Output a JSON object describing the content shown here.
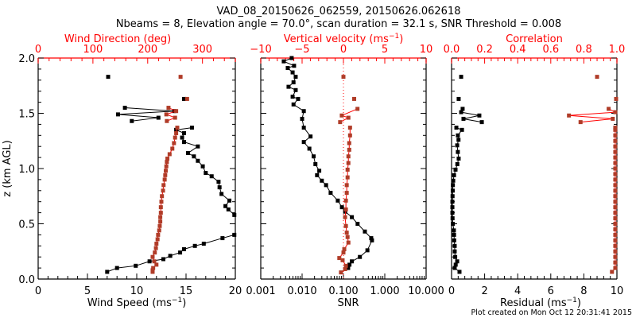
{
  "colors": {
    "primary": "#000000",
    "secondary_axis": "#ff0000",
    "secondary_marker": "#b03c28",
    "background": "#ffffff"
  },
  "chart_data": [
    {
      "type": "line",
      "panel": "left",
      "title_line1": "VAD_08_20150626_062559, 20150626.062618",
      "title_line2": "Nbeams = 8, Elevation angle = 70.0°, scan duration = 32.1 s, SNR Threshold = 0.008",
      "ylabel": "z (km AGL)",
      "ylim": [
        0,
        2.0
      ],
      "yticks": [
        "0.0",
        "0.5",
        "1.0",
        "1.5",
        "2.0"
      ],
      "xlabel": "Wind Speed (ms⁻¹)",
      "xlabel_main": "Wind Speed (ms",
      "xlabel_sup": "−1",
      "xlim": [
        0,
        20
      ],
      "xticks": [
        "0",
        "5",
        "10",
        "15",
        "20"
      ],
      "x2label": "Wind Direction (deg)",
      "x2lim": [
        0,
        360
      ],
      "x2ticks": [
        "0",
        "100",
        "200",
        "300"
      ],
      "series": [
        {
          "name": "Wind Speed",
          "color": "#000000",
          "axis": "bottom",
          "connected_groups": [
            {
              "z": [
                0.065,
                0.1,
                0.12,
                0.16,
                0.18,
                0.21,
                0.24,
                0.27,
                0.3,
                0.32,
                0.37,
                0.4
              ],
              "x": [
                7.0,
                8.0,
                9.9,
                11.3,
                12.7,
                13.4,
                14.4,
                14.8,
                15.9,
                16.8,
                18.7,
                19.9
              ]
            },
            {
              "z": [
                0.58,
                0.63,
                0.66,
                0.71,
                0.77,
                0.83,
                0.88,
                0.93,
                0.96,
                1.02,
                1.07,
                1.11,
                1.14,
                1.2,
                1.24,
                1.28,
                1.32,
                1.35,
                1.37
              ],
              "x": [
                19.9,
                19.3,
                19.0,
                19.4,
                18.6,
                18.4,
                18.3,
                17.6,
                17.0,
                16.7,
                16.2,
                15.8,
                15.2,
                16.2,
                14.8,
                14.6,
                14.8,
                14.0,
                15.6
              ]
            },
            {
              "z": [
                1.43,
                1.46,
                1.49,
                1.52,
                1.55
              ],
              "x": [
                9.5,
                12.2,
                8.1,
                13.8,
                8.8
              ]
            }
          ],
          "isolated": [
            {
              "z": 1.63,
              "x": 14.8
            },
            {
              "z": 1.83,
              "x": 7.1
            }
          ]
        },
        {
          "name": "Wind Direction",
          "color": "#b03c28",
          "axis": "top",
          "connected_groups": [
            {
              "z": [
                0.065,
                0.08,
                0.1,
                0.13,
                0.16,
                0.2,
                0.24,
                0.28,
                0.32,
                0.36,
                0.4,
                0.44,
                0.48,
                0.52,
                0.56,
                0.6,
                0.65,
                0.7,
                0.75,
                0.8,
                0.85,
                0.9,
                0.94,
                0.98,
                1.02,
                1.06,
                1.09,
                1.13,
                1.18,
                1.23,
                1.28,
                1.32,
                1.37
              ],
              "x": [
                209,
                209,
                210,
                216,
                212,
                209,
                213,
                215,
                216,
                218,
                219,
                221,
                222,
                223,
                223,
                224,
                224,
                225,
                226,
                228,
                229,
                231,
                232,
                233,
                234,
                235,
                236,
                240,
                245,
                248,
                250,
                252,
                254
              ]
            },
            {
              "z": [
                1.43,
                1.46,
                1.49,
                1.52,
                1.55
              ],
              "x": [
                235,
                250,
                234,
                252,
                238
              ]
            }
          ],
          "isolated": [
            {
              "z": 1.63,
              "x": 272
            },
            {
              "z": 1.83,
              "x": 260
            }
          ]
        }
      ]
    },
    {
      "type": "line",
      "panel": "middle",
      "xlabel": "SNR",
      "xscale": "log",
      "xlim": [
        0.001,
        10.0
      ],
      "xticks": [
        "0.001",
        "0.010",
        "0.100",
        "1.000",
        "10.000"
      ],
      "x2label": "Vertical velocity (ms⁻¹)",
      "x2label_main": "Vertical velocity (ms",
      "x2label_sup": "−1",
      "x2lim": [
        -10,
        10
      ],
      "x2ticks": [
        "−10",
        "−5",
        "0",
        "5",
        "10"
      ],
      "reference_line": {
        "axis": "top",
        "x": 0,
        "style": "dotted",
        "color": "#ff0000"
      },
      "series": [
        {
          "name": "SNR",
          "color": "#000000",
          "axis": "bottom",
          "connected_groups": [
            {
              "z": [
                2.0,
                1.97,
                1.93,
                1.91,
                1.87,
                1.83,
                1.78,
                1.74,
                1.71,
                1.65,
                1.63,
                1.58,
                1.52,
                1.45,
                1.37,
                1.29,
                1.24,
                1.18,
                1.11,
                1.04,
                0.98,
                0.94,
                0.89,
                0.85,
                0.78,
                0.71,
                0.65,
                0.61,
                0.56,
                0.5,
                0.43,
                0.37,
                0.35,
                0.26,
                0.2,
                0.16,
                0.13,
                0.1
              ],
              "x": [
                0.0056,
                0.0036,
                0.0064,
                0.0045,
                0.0059,
                0.007,
                0.0062,
                0.0047,
                0.007,
                0.0059,
                0.008,
                0.0062,
                0.011,
                0.01,
                0.011,
                0.016,
                0.011,
                0.015,
                0.019,
                0.021,
                0.026,
                0.023,
                0.03,
                0.038,
                0.049,
                0.073,
                0.092,
                0.11,
                0.16,
                0.22,
                0.33,
                0.47,
                0.49,
                0.38,
                0.25,
                0.16,
                0.14,
                0.13
              ]
            }
          ],
          "isolated": []
        },
        {
          "name": "Vertical velocity",
          "color": "#b03c28",
          "axis": "top",
          "connected_groups": [
            {
              "z": [
                1.54,
                1.48,
                1.46,
                1.42
              ],
              "x": [
                1.7,
                -0.2,
                0.6,
                -0.4
              ]
            },
            {
              "z": [
                0.06,
                0.09,
                0.12,
                0.17,
                0.19,
                0.24,
                0.27,
                0.33,
                0.38,
                0.42,
                0.48,
                0.56,
                0.63,
                0.71,
                0.78,
                0.85,
                0.92,
                0.99,
                1.05,
                1.11,
                1.17,
                1.23,
                1.3,
                1.37
              ],
              "x": [
                -0.3,
                0.2,
                0.3,
                -0.1,
                -0.5,
                0.0,
                0.1,
                0.6,
                0.5,
                0.4,
                0.3,
                0.2,
                0.3,
                0.3,
                0.4,
                0.4,
                0.5,
                0.5,
                0.6,
                0.6,
                0.7,
                0.7,
                0.8,
                0.8
              ]
            }
          ],
          "isolated": [
            {
              "z": 1.63,
              "x": 1.3
            },
            {
              "z": 1.83,
              "x": 0.0
            }
          ]
        }
      ]
    },
    {
      "type": "line",
      "panel": "right",
      "xlabel": "Residual (ms⁻¹)",
      "xlabel_main": "Residual (ms",
      "xlabel_sup": "−1",
      "xlim": [
        0,
        10
      ],
      "xticks": [
        "0",
        "2",
        "4",
        "6",
        "8",
        "10"
      ],
      "x2label": "Correlation",
      "x2lim": [
        0.0,
        1.0
      ],
      "x2ticks": [
        "0.0",
        "0.2",
        "0.4",
        "0.6",
        "0.8",
        "1.0"
      ],
      "series": [
        {
          "name": "Residual",
          "color": "#000000",
          "axis": "bottom",
          "connected_groups": [
            {
              "z": [
                1.54,
                1.51,
                1.48,
                1.45,
                1.42
              ],
              "x": [
                0.67,
                0.58,
                1.68,
                0.72,
                1.83
              ]
            },
            {
              "z": [
                0.065,
                0.1,
                0.13,
                0.16,
                0.2,
                0.25,
                0.3,
                0.35,
                0.4,
                0.44,
                0.5,
                0.55,
                0.6,
                0.65,
                0.7,
                0.75,
                0.8,
                0.85,
                0.89,
                0.94,
                0.99,
                1.04,
                1.09,
                1.15,
                1.21,
                1.26,
                1.3,
                1.35,
                1.37
              ],
              "x": [
                0.48,
                0.19,
                0.25,
                0.34,
                0.22,
                0.19,
                0.19,
                0.16,
                0.15,
                0.14,
                0.08,
                0.06,
                0.05,
                0.05,
                0.05,
                0.06,
                0.07,
                0.08,
                0.1,
                0.15,
                0.24,
                0.35,
                0.43,
                0.38,
                0.34,
                0.42,
                0.38,
                0.63,
                0.29
              ]
            }
          ],
          "isolated": [
            {
              "z": 1.63,
              "x": 0.43
            },
            {
              "z": 1.83,
              "x": 0.58
            }
          ]
        },
        {
          "name": "Correlation",
          "color": "#b03c28",
          "axis": "top",
          "connected_groups": [
            {
              "z": [
                1.54,
                1.51,
                1.48,
                1.45,
                1.42
              ],
              "x": [
                0.95,
                0.99,
                0.71,
                0.975,
                0.78
              ]
            },
            {
              "z": [
                0.065,
                0.1,
                0.15,
                0.2,
                0.25,
                0.3,
                0.35,
                0.4,
                0.45,
                0.5,
                0.55,
                0.6,
                0.65,
                0.7,
                0.75,
                0.8,
                0.85,
                0.9,
                0.95,
                1.0,
                1.05,
                1.1,
                1.15,
                1.2,
                1.25,
                1.3,
                1.35,
                1.37
              ],
              "x": [
                0.97,
                0.99,
                0.99,
                0.99,
                0.99,
                0.99,
                0.99,
                0.99,
                0.99,
                0.99,
                0.99,
                0.99,
                0.99,
                0.99,
                0.99,
                0.99,
                0.99,
                0.99,
                0.99,
                0.99,
                0.99,
                0.99,
                0.99,
                0.99,
                0.99,
                0.99,
                0.99,
                0.99
              ]
            }
          ],
          "isolated": [
            {
              "z": 1.63,
              "x": 0.995
            },
            {
              "z": 1.83,
              "x": 0.88
            }
          ]
        }
      ]
    }
  ],
  "footer": "Plot created on Mon Oct 12 20:31:41 2015"
}
